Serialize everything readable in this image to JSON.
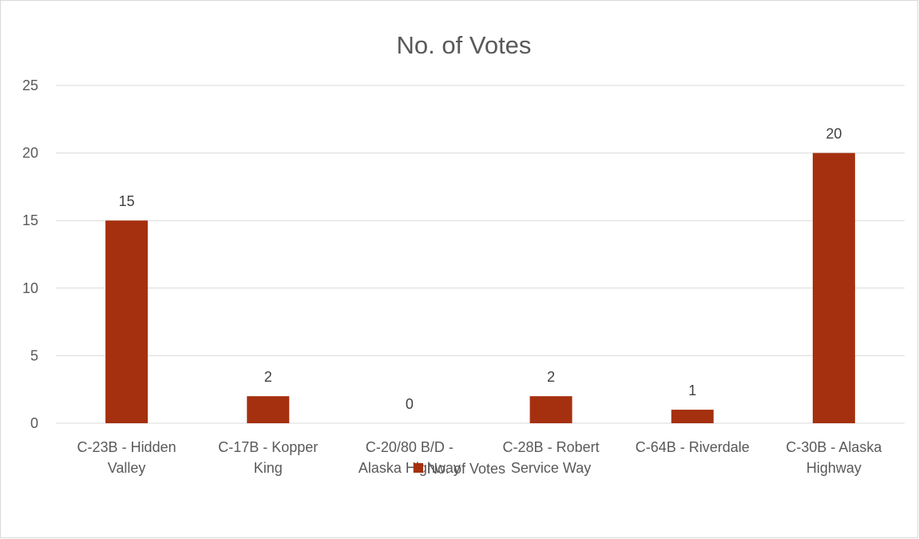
{
  "chart_data": {
    "type": "bar",
    "title": "No. of Votes",
    "categories": [
      [
        "C-23B - Hidden",
        "Valley"
      ],
      [
        "C-17B - Kopper",
        "King"
      ],
      [
        "C-20/80 B/D -",
        "Alaska Highway"
      ],
      [
        "C-28B - Robert",
        "Service Way"
      ],
      [
        "C-64B - Riverdale"
      ],
      [
        "C-30B - Alaska",
        "Highway"
      ]
    ],
    "series": [
      {
        "name": "No. of Votes",
        "values": [
          15,
          2,
          0,
          2,
          1,
          20
        ],
        "color": "#a5300f"
      }
    ],
    "ylim": [
      0,
      25
    ],
    "yticks": [
      0,
      5,
      10,
      15,
      20,
      25
    ],
    "grid": true,
    "data_labels": true,
    "legend": "bottom",
    "gridline_color": "#d9d9d9"
  }
}
